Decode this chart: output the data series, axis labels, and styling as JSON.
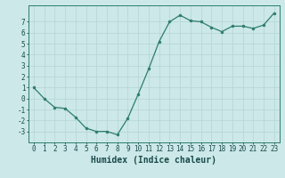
{
  "x": [
    0,
    1,
    2,
    3,
    4,
    5,
    6,
    7,
    8,
    9,
    10,
    11,
    12,
    13,
    14,
    15,
    16,
    17,
    18,
    19,
    20,
    21,
    22,
    23
  ],
  "y": [
    1.0,
    0.0,
    -0.8,
    -0.9,
    -1.7,
    -2.7,
    -3.0,
    -3.0,
    -3.3,
    -1.8,
    0.4,
    2.7,
    5.2,
    7.0,
    7.6,
    7.1,
    7.0,
    6.5,
    6.1,
    6.6,
    6.6,
    6.4,
    6.7,
    7.8
  ],
  "xlabel": "Humidex (Indice chaleur)",
  "xlim": [
    -0.5,
    23.5
  ],
  "ylim": [
    -4.0,
    8.5
  ],
  "yticks": [
    -3,
    -2,
    -1,
    0,
    1,
    2,
    3,
    4,
    5,
    6,
    7
  ],
  "xticks": [
    0,
    1,
    2,
    3,
    4,
    5,
    6,
    7,
    8,
    9,
    10,
    11,
    12,
    13,
    14,
    15,
    16,
    17,
    18,
    19,
    20,
    21,
    22,
    23
  ],
  "line_color": "#2e7d6e",
  "marker_color": "#2e7d6e",
  "bg_color": "#cce8e8",
  "grid_color": "#b8d8d8",
  "axis_color": "#2e7d6e",
  "label_color": "#1a4a4a",
  "tick_label_fontsize": 5.5,
  "xlabel_fontsize": 7.0
}
